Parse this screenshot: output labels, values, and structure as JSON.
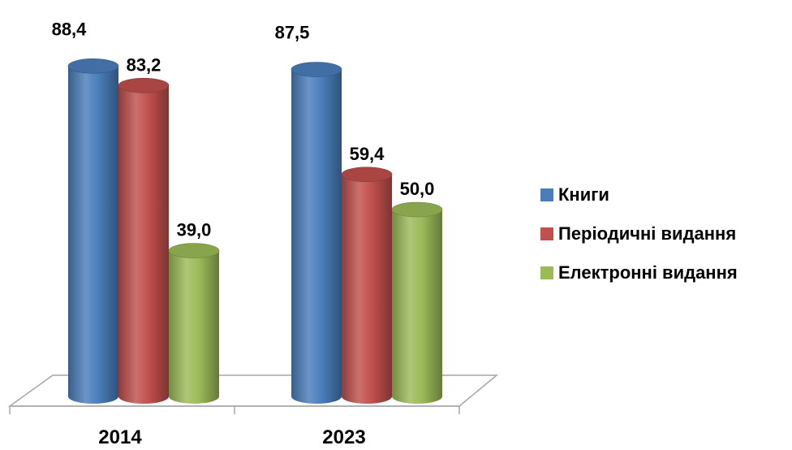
{
  "chart_data": {
    "type": "bar",
    "categories": [
      "2014",
      "2023"
    ],
    "series": [
      {
        "name": "Книги",
        "values": [
          88.4,
          87.5
        ],
        "labels": [
          "88,4",
          "87,5"
        ],
        "color": "#4a7ebb"
      },
      {
        "name": "Періодичні видання",
        "values": [
          83.2,
          59.4
        ],
        "labels": [
          "83,2",
          "59,4"
        ],
        "color": "#c0504d"
      },
      {
        "name": "Електронні видання",
        "values": [
          39.0,
          50.0
        ],
        "labels": [
          "39,0",
          "50,0"
        ],
        "color": "#9bbb59"
      }
    ],
    "title": "",
    "xlabel": "",
    "ylabel": "",
    "ylim": [
      0,
      100
    ],
    "grid": false,
    "legend_position": "right",
    "style": "3d-cylinder"
  }
}
